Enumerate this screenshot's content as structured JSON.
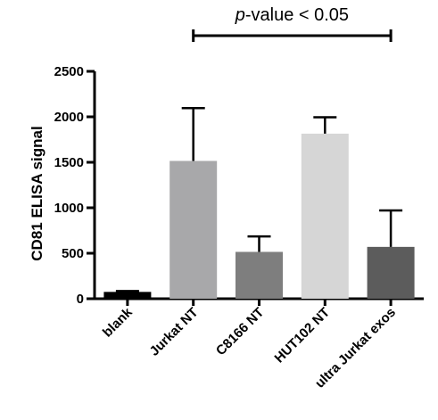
{
  "chart_data": {
    "type": "bar",
    "title": "",
    "xlabel": "",
    "ylabel": "CD81 ELISA signal",
    "ylim": [
      0,
      2500
    ],
    "yticks": [
      0,
      500,
      1000,
      1500,
      2000,
      2500
    ],
    "categories": [
      "blank",
      "Jurkat NT",
      "C8166 NT",
      "HUT102 NT",
      "ultra Jurkat exos"
    ],
    "values": [
      75,
      1515,
      515,
      1815,
      570
    ],
    "errors": [
      10,
      580,
      170,
      180,
      400
    ],
    "colors": [
      "#000000",
      "#a8a8aa",
      "#7e7e7e",
      "#d6d6d6",
      "#5c5c5c"
    ],
    "annotation": {
      "prefix": "p",
      "text": "-value < 0.05",
      "from_category": "Jurkat NT",
      "to_category": "ultra Jurkat exos"
    }
  }
}
